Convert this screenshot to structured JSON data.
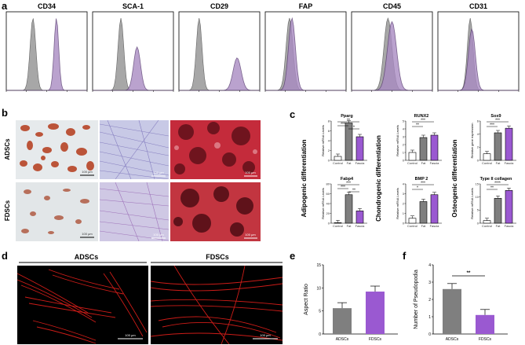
{
  "panels": {
    "a": "a",
    "b": "b",
    "c": "c",
    "d": "d",
    "e": "e",
    "f": "f"
  },
  "flow": {
    "markers": [
      "CD34",
      "SCA-1",
      "CD29",
      "FAP",
      "CD45",
      "CD31"
    ],
    "colors": {
      "control": "#9e9e9e",
      "sample": "#a98bc2",
      "sample_line": "#5a3d73",
      "accent": "#ffa500"
    }
  },
  "micro": {
    "row_labels": [
      "ADSCs",
      "FDSCs"
    ],
    "scale_labels": [
      "100 μm",
      "100 μm",
      "100 μm",
      "100 μm",
      "100 μm",
      "100 μm"
    ]
  },
  "diff": {
    "group_labels": [
      "Adipogenic differentiation",
      "Chondrogenic differentiation",
      "Osteogenic differentiation"
    ],
    "x_labels": [
      "Control",
      "Fat",
      "Fascia"
    ],
    "colors": {
      "control": "#ffffff",
      "fat": "#7f7f7f",
      "fascia": "#9a59d1"
    },
    "charts": [
      {
        "title": "Pparg",
        "ylabel": "Relative mRNA Levels",
        "yticks": [
          "0",
          "2",
          "4",
          "6",
          "8"
        ],
        "ymax": 8,
        "values": [
          0.8,
          7.6,
          4.8
        ],
        "sig": [
          "***",
          "**",
          "*"
        ]
      },
      {
        "title": "Fabp4",
        "ylabel": "Relative mRNA Levels",
        "yticks": [
          "0",
          "20",
          "40",
          "60",
          "80"
        ],
        "ymax": 80,
        "values": [
          1,
          58,
          25
        ],
        "sig": [
          "***",
          "***",
          "**"
        ]
      },
      {
        "title": "RUNX2",
        "ylabel": "Relative mRNA Levels",
        "yticks": [
          "0",
          "1",
          "2",
          "3",
          "4",
          "5"
        ],
        "ymax": 5,
        "values": [
          1,
          2.9,
          3.2
        ],
        "sig": [
          "***",
          "**"
        ]
      },
      {
        "title": "BMP 2",
        "ylabel": "Relative mRNA Levels",
        "yticks": [
          "0",
          "1",
          "2",
          "3",
          "4"
        ],
        "ymax": 4,
        "values": [
          0.5,
          2.2,
          2.9
        ],
        "sig": [
          "***",
          "*"
        ]
      },
      {
        "title": "Sox9",
        "ylabel": "Relative gene expression",
        "yticks": [
          "0",
          "2",
          "4",
          "6"
        ],
        "ymax": 6,
        "values": [
          1,
          4.2,
          4.9
        ],
        "sig": [
          "***",
          "***"
        ]
      },
      {
        "title": "Type II collagen",
        "ylabel": "Relative mRNA Levels",
        "yticks": [
          "0",
          "5",
          "10",
          "15"
        ],
        "ymax": 15,
        "values": [
          1,
          9.5,
          12.5
        ],
        "sig": [
          "****",
          "**"
        ]
      }
    ]
  },
  "cyto": {
    "labels": [
      "ADSCs",
      "FDSCs"
    ],
    "scale_labels": [
      "100 μm",
      "100 μm"
    ]
  },
  "chart_data": [
    {
      "type": "bar",
      "categories": [
        "ADSCs",
        "FDSCs"
      ],
      "values": [
        5.6,
        9.2
      ],
      "ylabel": "Aspect Ratio",
      "ylim": [
        0,
        15
      ],
      "yticks": [
        "0",
        "5",
        "10",
        "15"
      ],
      "colors": [
        "#7f7f7f",
        "#9a59d1"
      ]
    },
    {
      "type": "bar",
      "categories": [
        "ADSCs",
        "FDSCs"
      ],
      "values": [
        2.6,
        1.1
      ],
      "ylabel": "Number of Pseudopodia",
      "ylim": [
        0,
        4
      ],
      "yticks": [
        "0",
        "1",
        "2",
        "3",
        "4"
      ],
      "significance": "**",
      "colors": [
        "#7f7f7f",
        "#9a59d1"
      ]
    }
  ]
}
